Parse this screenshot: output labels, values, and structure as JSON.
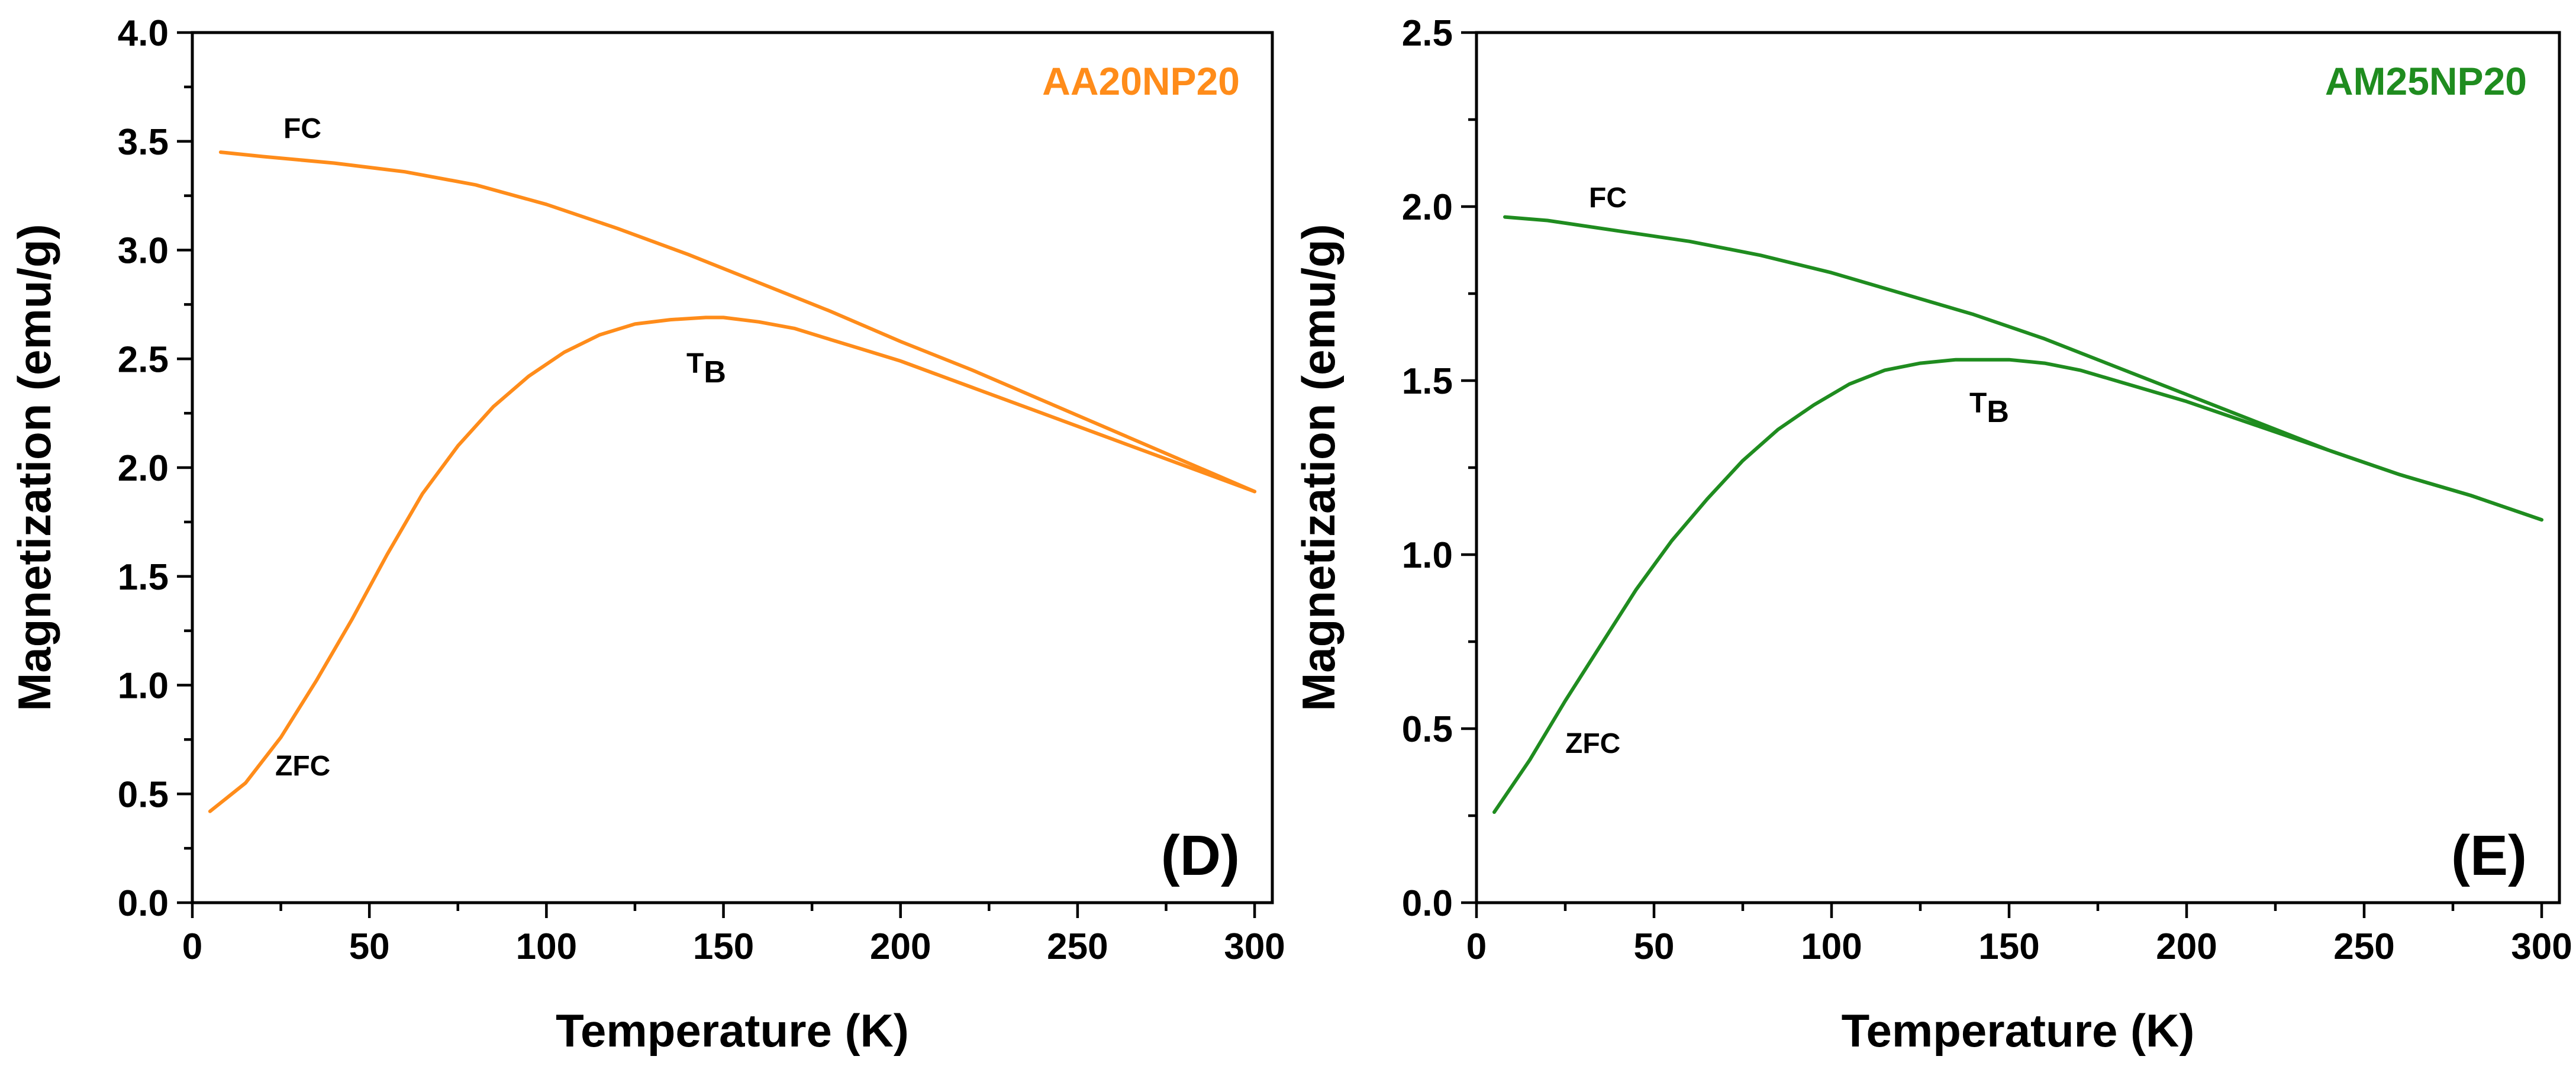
{
  "chart_data": [
    {
      "type": "line",
      "panel_label": "(D)",
      "sample": "AA20NP20",
      "color": "#ff8c1a",
      "xlabel": "Temperature (K)",
      "ylabel": "Magnetization (emu/g)",
      "xlim": [
        0,
        305
      ],
      "ylim": [
        0,
        4.0
      ],
      "xticks": [
        "0",
        "50",
        "100",
        "150",
        "200",
        "250",
        "300"
      ],
      "yticks": [
        "0.0",
        "0.5",
        "1.0",
        "1.5",
        "2.0",
        "2.5",
        "3.0",
        "3.5",
        "4.0"
      ],
      "grid": false,
      "annotations": {
        "fc": "FC",
        "zfc": "ZFC",
        "tb_main": "T",
        "tb_sub": "B"
      },
      "series": [
        {
          "name": "FC",
          "x": [
            8,
            20,
            40,
            60,
            80,
            100,
            120,
            140,
            160,
            180,
            200,
            220,
            240,
            260,
            280,
            300
          ],
          "y": [
            3.45,
            3.43,
            3.4,
            3.36,
            3.3,
            3.21,
            3.1,
            2.98,
            2.85,
            2.72,
            2.58,
            2.45,
            2.31,
            2.17,
            2.03,
            1.89
          ]
        },
        {
          "name": "ZFC",
          "x": [
            5,
            15,
            25,
            35,
            45,
            55,
            65,
            75,
            85,
            95,
            105,
            115,
            125,
            135,
            145,
            150,
            160,
            170,
            180,
            190,
            200,
            210,
            220,
            240,
            260,
            280,
            300
          ],
          "y": [
            0.42,
            0.55,
            0.76,
            1.02,
            1.3,
            1.6,
            1.88,
            2.1,
            2.28,
            2.42,
            2.53,
            2.61,
            2.66,
            2.68,
            2.69,
            2.69,
            2.67,
            2.64,
            2.59,
            2.54,
            2.49,
            2.43,
            2.37,
            2.25,
            2.13,
            2.01,
            1.89
          ]
        }
      ]
    },
    {
      "type": "line",
      "panel_label": "(E)",
      "sample": "AM25NP20",
      "color": "#1f8c1f",
      "xlabel": "Temperature (K)",
      "ylabel": "Magnetization (emu/g)",
      "xlim": [
        0,
        305
      ],
      "ylim": [
        0,
        2.5
      ],
      "xticks": [
        "0",
        "50",
        "100",
        "150",
        "200",
        "250",
        "300"
      ],
      "yticks": [
        "0.0",
        "0.5",
        "1.0",
        "1.5",
        "2.0",
        "2.5"
      ],
      "grid": false,
      "annotations": {
        "fc": "FC",
        "zfc": "ZFC",
        "tb_main": "T",
        "tb_sub": "B"
      },
      "series": [
        {
          "name": "FC",
          "x": [
            8,
            20,
            40,
            60,
            80,
            100,
            120,
            140,
            160,
            180,
            200,
            220,
            240,
            260,
            280,
            300
          ],
          "y": [
            1.97,
            1.96,
            1.93,
            1.9,
            1.86,
            1.81,
            1.75,
            1.69,
            1.62,
            1.54,
            1.46,
            1.38,
            1.3,
            1.23,
            1.17,
            1.1
          ]
        },
        {
          "name": "ZFC",
          "x": [
            5,
            15,
            25,
            35,
            45,
            55,
            65,
            75,
            85,
            95,
            105,
            115,
            125,
            135,
            145,
            150,
            160,
            170,
            180,
            190,
            200,
            220,
            240,
            260,
            280,
            300
          ],
          "y": [
            0.26,
            0.41,
            0.58,
            0.74,
            0.9,
            1.04,
            1.16,
            1.27,
            1.36,
            1.43,
            1.49,
            1.53,
            1.55,
            1.56,
            1.56,
            1.56,
            1.55,
            1.53,
            1.5,
            1.47,
            1.44,
            1.37,
            1.3,
            1.23,
            1.17,
            1.1
          ]
        }
      ]
    }
  ]
}
